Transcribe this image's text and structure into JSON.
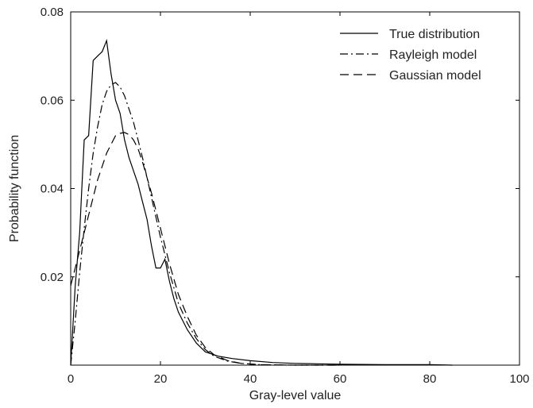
{
  "chart_data": {
    "type": "line",
    "title": "",
    "xlabel": "Gray-level value",
    "ylabel": "Probability function",
    "xlim": [
      0,
      100
    ],
    "ylim": [
      0,
      0.08
    ],
    "xticks": [
      "0",
      "20",
      "40",
      "60",
      "80",
      "100"
    ],
    "yticks": [
      "0.02",
      "0.04",
      "0.06",
      "0.08"
    ],
    "grid": false,
    "legend_position": "top-right",
    "series": [
      {
        "name": "True distribution",
        "style": "solid",
        "color": "#000000",
        "x": [
          0,
          1,
          2,
          3,
          4,
          5,
          6,
          7,
          8,
          9,
          10,
          11,
          12,
          13,
          14,
          15,
          16,
          17,
          18,
          19,
          20,
          21,
          22,
          23,
          24,
          26,
          28,
          30,
          33,
          36,
          40,
          45,
          50,
          55,
          60,
          70,
          80,
          85
        ],
        "y": [
          0,
          0.018,
          0.03,
          0.051,
          0.052,
          0.069,
          0.07,
          0.071,
          0.0735,
          0.066,
          0.06,
          0.057,
          0.051,
          0.047,
          0.044,
          0.041,
          0.037,
          0.033,
          0.027,
          0.022,
          0.022,
          0.024,
          0.019,
          0.015,
          0.012,
          0.008,
          0.005,
          0.003,
          0.002,
          0.0015,
          0.001,
          0.0006,
          0.0004,
          0.0003,
          0.0002,
          0.0001,
          0.0001,
          0
        ]
      },
      {
        "name": "Rayleigh model",
        "style": "dashdot",
        "color": "#000000",
        "x": [
          0,
          1,
          2,
          3,
          4,
          5,
          6,
          7,
          8,
          9,
          10,
          11,
          12,
          13,
          14,
          15,
          16,
          18,
          20,
          22,
          24,
          26,
          28,
          30,
          32,
          35,
          38,
          42,
          50,
          60
        ],
        "y": [
          0,
          0.01,
          0.021,
          0.031,
          0.04,
          0.048,
          0.054,
          0.059,
          0.062,
          0.0635,
          0.064,
          0.063,
          0.061,
          0.058,
          0.055,
          0.051,
          0.047,
          0.038,
          0.029,
          0.021,
          0.014,
          0.0095,
          0.006,
          0.0035,
          0.002,
          0.0009,
          0.0004,
          0.0001,
          0,
          0
        ]
      },
      {
        "name": "Gaussian model",
        "style": "dashed",
        "color": "#000000",
        "x": [
          0,
          1,
          2,
          3,
          4,
          5,
          6,
          7,
          8,
          9,
          10,
          11,
          12,
          13,
          14,
          15,
          16,
          18,
          20,
          22,
          24,
          26,
          28,
          30,
          32,
          35,
          38,
          42,
          50,
          60
        ],
        "y": [
          0.018,
          0.022,
          0.026,
          0.03,
          0.034,
          0.038,
          0.042,
          0.045,
          0.048,
          0.05,
          0.052,
          0.0525,
          0.0527,
          0.0522,
          0.051,
          0.049,
          0.046,
          0.039,
          0.031,
          0.023,
          0.016,
          0.011,
          0.0068,
          0.004,
          0.0023,
          0.001,
          0.0004,
          0.0001,
          0,
          0
        ]
      }
    ]
  }
}
